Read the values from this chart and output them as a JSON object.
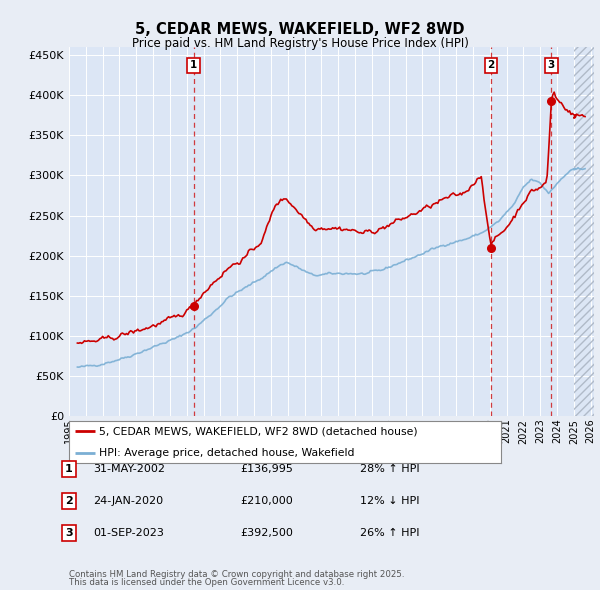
{
  "title": "5, CEDAR MEWS, WAKEFIELD, WF2 8WD",
  "subtitle": "Price paid vs. HM Land Registry's House Price Index (HPI)",
  "ylim": [
    0,
    460000
  ],
  "xlim_start": 1995.3,
  "xlim_end": 2026.2,
  "hatch_start": 2025.0,
  "yticks": [
    0,
    50000,
    100000,
    150000,
    200000,
    250000,
    300000,
    350000,
    400000,
    450000
  ],
  "background_color": "#e8edf5",
  "plot_bg_color": "#dce6f5",
  "grid_color": "#ffffff",
  "hpi_line_color": "#7bafd4",
  "price_line_color": "#cc0000",
  "hatch_color": "#c8d0dc",
  "transactions": [
    {
      "label": "1",
      "date": "31-MAY-2002",
      "price": 136995,
      "x": 2002.41,
      "pct": "28% ↑ HPI"
    },
    {
      "label": "2",
      "date": "24-JAN-2020",
      "price": 210000,
      "x": 2020.07,
      "pct": "12% ↓ HPI"
    },
    {
      "label": "3",
      "date": "01-SEP-2023",
      "price": 392500,
      "x": 2023.67,
      "pct": "26% ↑ HPI"
    }
  ],
  "legend_line1": "5, CEDAR MEWS, WAKEFIELD, WF2 8WD (detached house)",
  "legend_line2": "HPI: Average price, detached house, Wakefield",
  "footer1": "Contains HM Land Registry data © Crown copyright and database right 2025.",
  "footer2": "This data is licensed under the Open Government Licence v3.0."
}
